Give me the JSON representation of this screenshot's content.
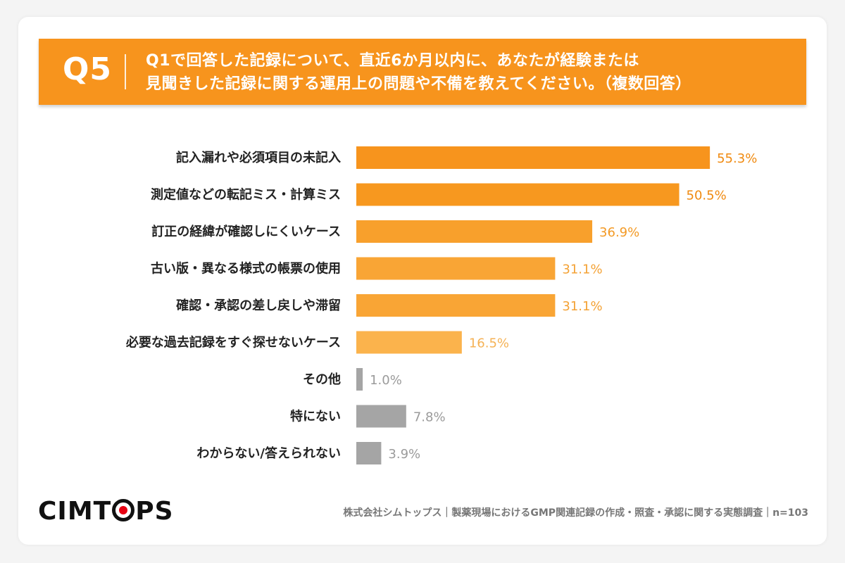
{
  "header": {
    "qnum": "Q5",
    "line1": "Q1で回答した記録について、直近6か月以内に、あなたが経験または",
    "line2": "見聞きした記録に関する運用上の問題や不備を教えてください。（複数回答）",
    "bg_color": "#f7941d"
  },
  "chart_data": {
    "type": "bar",
    "orientation": "horizontal",
    "categories": [
      "記入漏れや必須項目の未記入",
      "測定値などの転記ミス・計算ミス",
      "訂正の経緯が確認しにくいケース",
      "古い版・異なる様式の帳票の使用",
      "確認・承認の差し戻しや滞留",
      "必要な過去記録をすぐ探せないケース",
      "その他",
      "特にない",
      "わからない/答えられない"
    ],
    "values": [
      55.3,
      50.5,
      36.9,
      31.1,
      31.1,
      16.5,
      1.0,
      7.8,
      3.9
    ],
    "value_labels": [
      "55.3%",
      "50.5%",
      "36.9%",
      "31.1%",
      "31.1%",
      "16.5%",
      "1.0%",
      "7.8%",
      "3.9%"
    ],
    "unit": "%",
    "xlim": [
      0,
      60
    ],
    "grid": false,
    "bar_colors": [
      "#f7941d",
      "#f7981f",
      "#f8a02c",
      "#f9a535",
      "#f9a535",
      "#fbb34c",
      "#a5a5a5",
      "#a5a5a5",
      "#a5a5a5"
    ],
    "label_colors": [
      "#f08a10",
      "#f08a10",
      "#f39a25",
      "#f4a235",
      "#f4a235",
      "#f5b255",
      "#9b9b9b",
      "#9b9b9b",
      "#9b9b9b"
    ]
  },
  "logo": {
    "text_before": "CIMT",
    "text_after": "PS"
  },
  "footer": {
    "text": "株式会社シムトップス｜製薬現場におけるGMP関連記録の作成・照査・承認に関する実態調査｜n=103"
  }
}
